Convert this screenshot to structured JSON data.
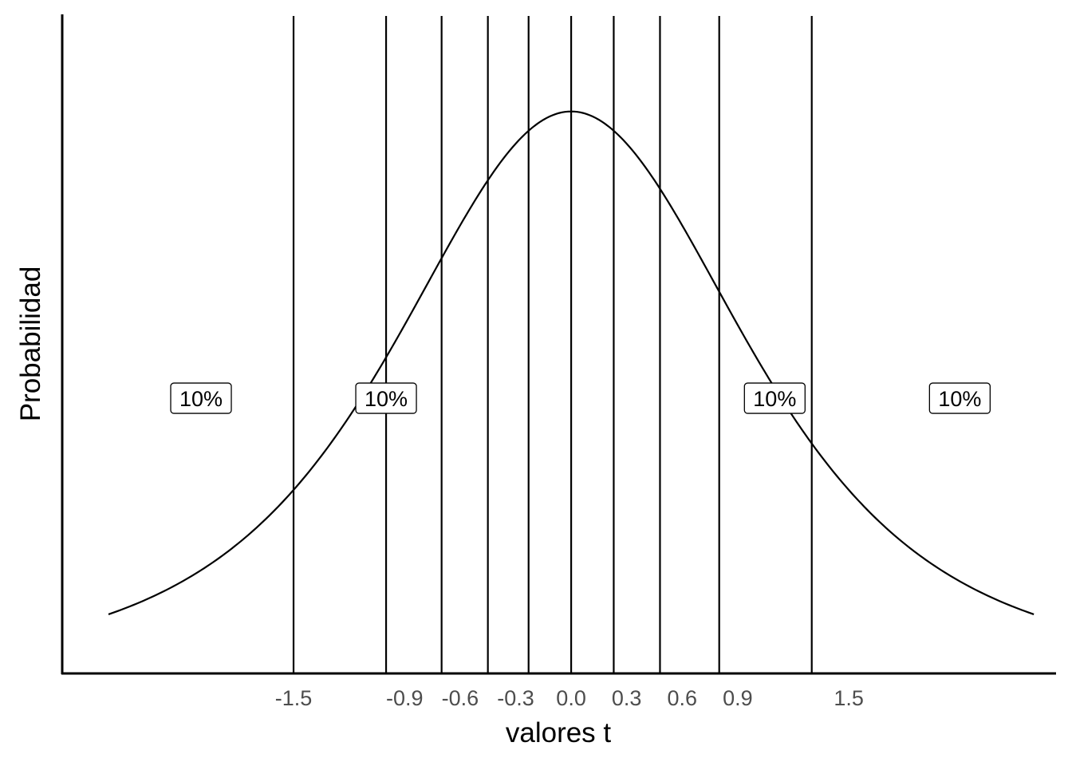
{
  "chart_data": {
    "type": "line",
    "title": "",
    "xlabel": "valores t",
    "ylabel": "Probabilidad",
    "xlim": [
      -2.75,
      2.62
    ],
    "ylim": [
      0,
      0.43
    ],
    "grid": false,
    "curve": {
      "distribution": "t",
      "df": 3,
      "x_range": [
        -2.5,
        2.5
      ],
      "color": "#000000"
    },
    "vlines": [
      -1.5,
      -1.0,
      -0.7,
      -0.45,
      -0.23,
      0.0,
      0.23,
      0.48,
      0.8,
      1.3
    ],
    "xticks": [
      {
        "value": -1.5,
        "label": "-1.5"
      },
      {
        "value": -0.9,
        "label": "-0.9"
      },
      {
        "value": -0.6,
        "label": "-0.6"
      },
      {
        "value": -0.3,
        "label": "-0.3"
      },
      {
        "value": 0.0,
        "label": "0.0"
      },
      {
        "value": 0.3,
        "label": "0.3"
      },
      {
        "value": 0.6,
        "label": "0.6"
      },
      {
        "value": 0.9,
        "label": "0.9"
      },
      {
        "value": 1.5,
        "label": "1.5"
      }
    ],
    "annotations": [
      {
        "x": -2.0,
        "y": 0.18,
        "label": "10%"
      },
      {
        "x": -1.0,
        "y": 0.18,
        "label": "10%"
      },
      {
        "x": 1.1,
        "y": 0.18,
        "label": "10%"
      },
      {
        "x": 2.1,
        "y": 0.18,
        "label": "10%"
      }
    ],
    "colors": {
      "line": "#000000",
      "tick_text": "#4d4d4d",
      "label_fill": "#ffffff"
    }
  }
}
